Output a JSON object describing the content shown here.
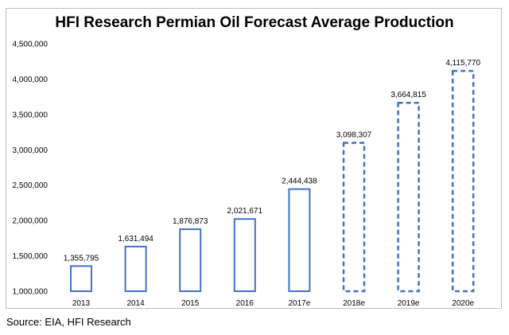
{
  "chart_data": {
    "type": "bar",
    "title": "HFI Research Permian Oil Forecast Average Production",
    "categories": [
      "2013",
      "2014",
      "2015",
      "2016",
      "2017e",
      "2018e",
      "2019e",
      "2020e"
    ],
    "values": [
      1355795,
      1631494,
      1876873,
      2021671,
      2444438,
      3098307,
      3664815,
      4115770
    ],
    "value_labels": [
      "1,355,795",
      "1,631,494",
      "1,876,873",
      "2,021,671",
      "2,444,438",
      "3,098,307",
      "3,664,815",
      "4,115,770"
    ],
    "forecast": [
      false,
      false,
      false,
      false,
      false,
      true,
      true,
      true
    ],
    "ylim": [
      1000000,
      4500000
    ],
    "y_ticks": [
      1000000,
      1500000,
      2000000,
      2500000,
      3000000,
      3500000,
      4000000,
      4500000
    ],
    "y_tick_labels": [
      "1,000,000",
      "1,500,000",
      "2,000,000",
      "2,500,000",
      "3,000,000",
      "3,500,000",
      "4,000,000",
      "4,500,000"
    ],
    "xlabel": "",
    "ylabel": "",
    "grid": false,
    "bar_style": "outline",
    "bar_color": "#4472C4"
  },
  "source_note": "Source: EIA, HFI Research"
}
